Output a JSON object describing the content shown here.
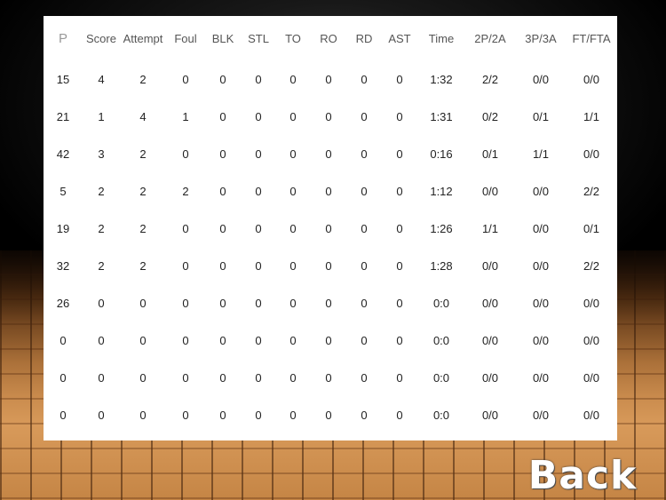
{
  "table": {
    "headers": [
      "P",
      "Score",
      "Attempt",
      "Foul",
      "BLK",
      "STL",
      "TO",
      "RO",
      "RD",
      "AST",
      "Time",
      "2P/2A",
      "3P/3A",
      "FT/FTA"
    ],
    "rows": [
      [
        "15",
        "4",
        "2",
        "0",
        "0",
        "0",
        "0",
        "0",
        "0",
        "0",
        "1:32",
        "2/2",
        "0/0",
        "0/0"
      ],
      [
        "21",
        "1",
        "4",
        "1",
        "0",
        "0",
        "0",
        "0",
        "0",
        "0",
        "1:31",
        "0/2",
        "0/1",
        "1/1"
      ],
      [
        "42",
        "3",
        "2",
        "0",
        "0",
        "0",
        "0",
        "0",
        "0",
        "0",
        "0:16",
        "0/1",
        "1/1",
        "0/0"
      ],
      [
        "5",
        "2",
        "2",
        "2",
        "0",
        "0",
        "0",
        "0",
        "0",
        "0",
        "1:12",
        "0/0",
        "0/0",
        "2/2"
      ],
      [
        "19",
        "2",
        "2",
        "0",
        "0",
        "0",
        "0",
        "0",
        "0",
        "0",
        "1:26",
        "1/1",
        "0/0",
        "0/1"
      ],
      [
        "32",
        "2",
        "2",
        "0",
        "0",
        "0",
        "0",
        "0",
        "0",
        "0",
        "1:28",
        "0/0",
        "0/0",
        "2/2"
      ],
      [
        "26",
        "0",
        "0",
        "0",
        "0",
        "0",
        "0",
        "0",
        "0",
        "0",
        "0:0",
        "0/0",
        "0/0",
        "0/0"
      ],
      [
        "0",
        "0",
        "0",
        "0",
        "0",
        "0",
        "0",
        "0",
        "0",
        "0",
        "0:0",
        "0/0",
        "0/0",
        "0/0"
      ],
      [
        "0",
        "0",
        "0",
        "0",
        "0",
        "0",
        "0",
        "0",
        "0",
        "0",
        "0:0",
        "0/0",
        "0/0",
        "0/0"
      ],
      [
        "0",
        "0",
        "0",
        "0",
        "0",
        "0",
        "0",
        "0",
        "0",
        "0",
        "0:0",
        "0/0",
        "0/0",
        "0/0"
      ]
    ]
  },
  "back_button": {
    "label": "Back"
  }
}
